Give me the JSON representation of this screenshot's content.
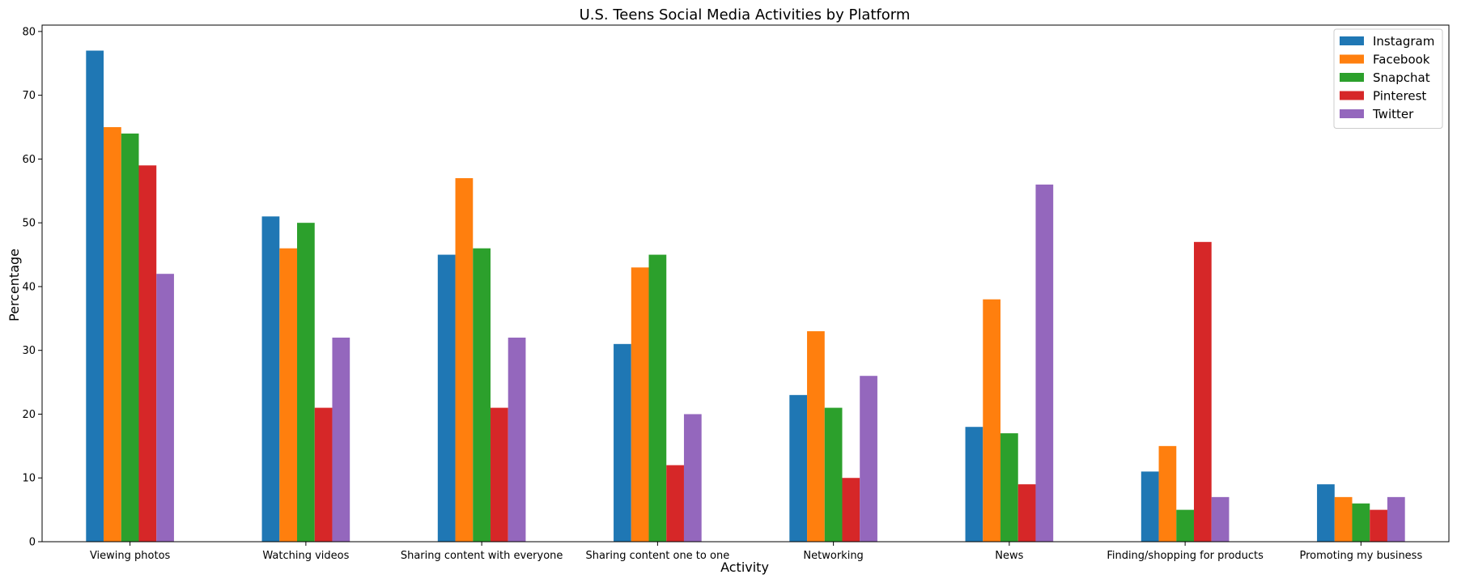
{
  "chart_data": {
    "type": "bar",
    "title": "U.S. Teens Social Media Activities by Platform",
    "xlabel": "Activity",
    "ylabel": "Percentage",
    "ylim": [
      0,
      81
    ],
    "yticks": [
      0,
      10,
      20,
      30,
      40,
      50,
      60,
      70,
      80
    ],
    "grid": false,
    "legend_position": "top-right",
    "categories": [
      "Viewing photos",
      "Watching videos",
      "Sharing content with everyone",
      "Sharing content one to one",
      "Networking",
      "News",
      "Finding/shopping for products",
      "Promoting my business"
    ],
    "series": [
      {
        "name": "Instagram",
        "color": "#1f77b4",
        "values": [
          77,
          51,
          45,
          31,
          23,
          18,
          11,
          9
        ]
      },
      {
        "name": "Facebook",
        "color": "#ff7f0e",
        "values": [
          65,
          46,
          57,
          43,
          33,
          38,
          15,
          7
        ]
      },
      {
        "name": "Snapchat",
        "color": "#2ca02c",
        "values": [
          64,
          50,
          46,
          45,
          21,
          17,
          5,
          6
        ]
      },
      {
        "name": "Pinterest",
        "color": "#d62728",
        "values": [
          59,
          21,
          21,
          12,
          10,
          9,
          47,
          5
        ]
      },
      {
        "name": "Twitter",
        "color": "#9467bd",
        "values": [
          42,
          32,
          32,
          20,
          26,
          56,
          7,
          7
        ]
      }
    ]
  }
}
